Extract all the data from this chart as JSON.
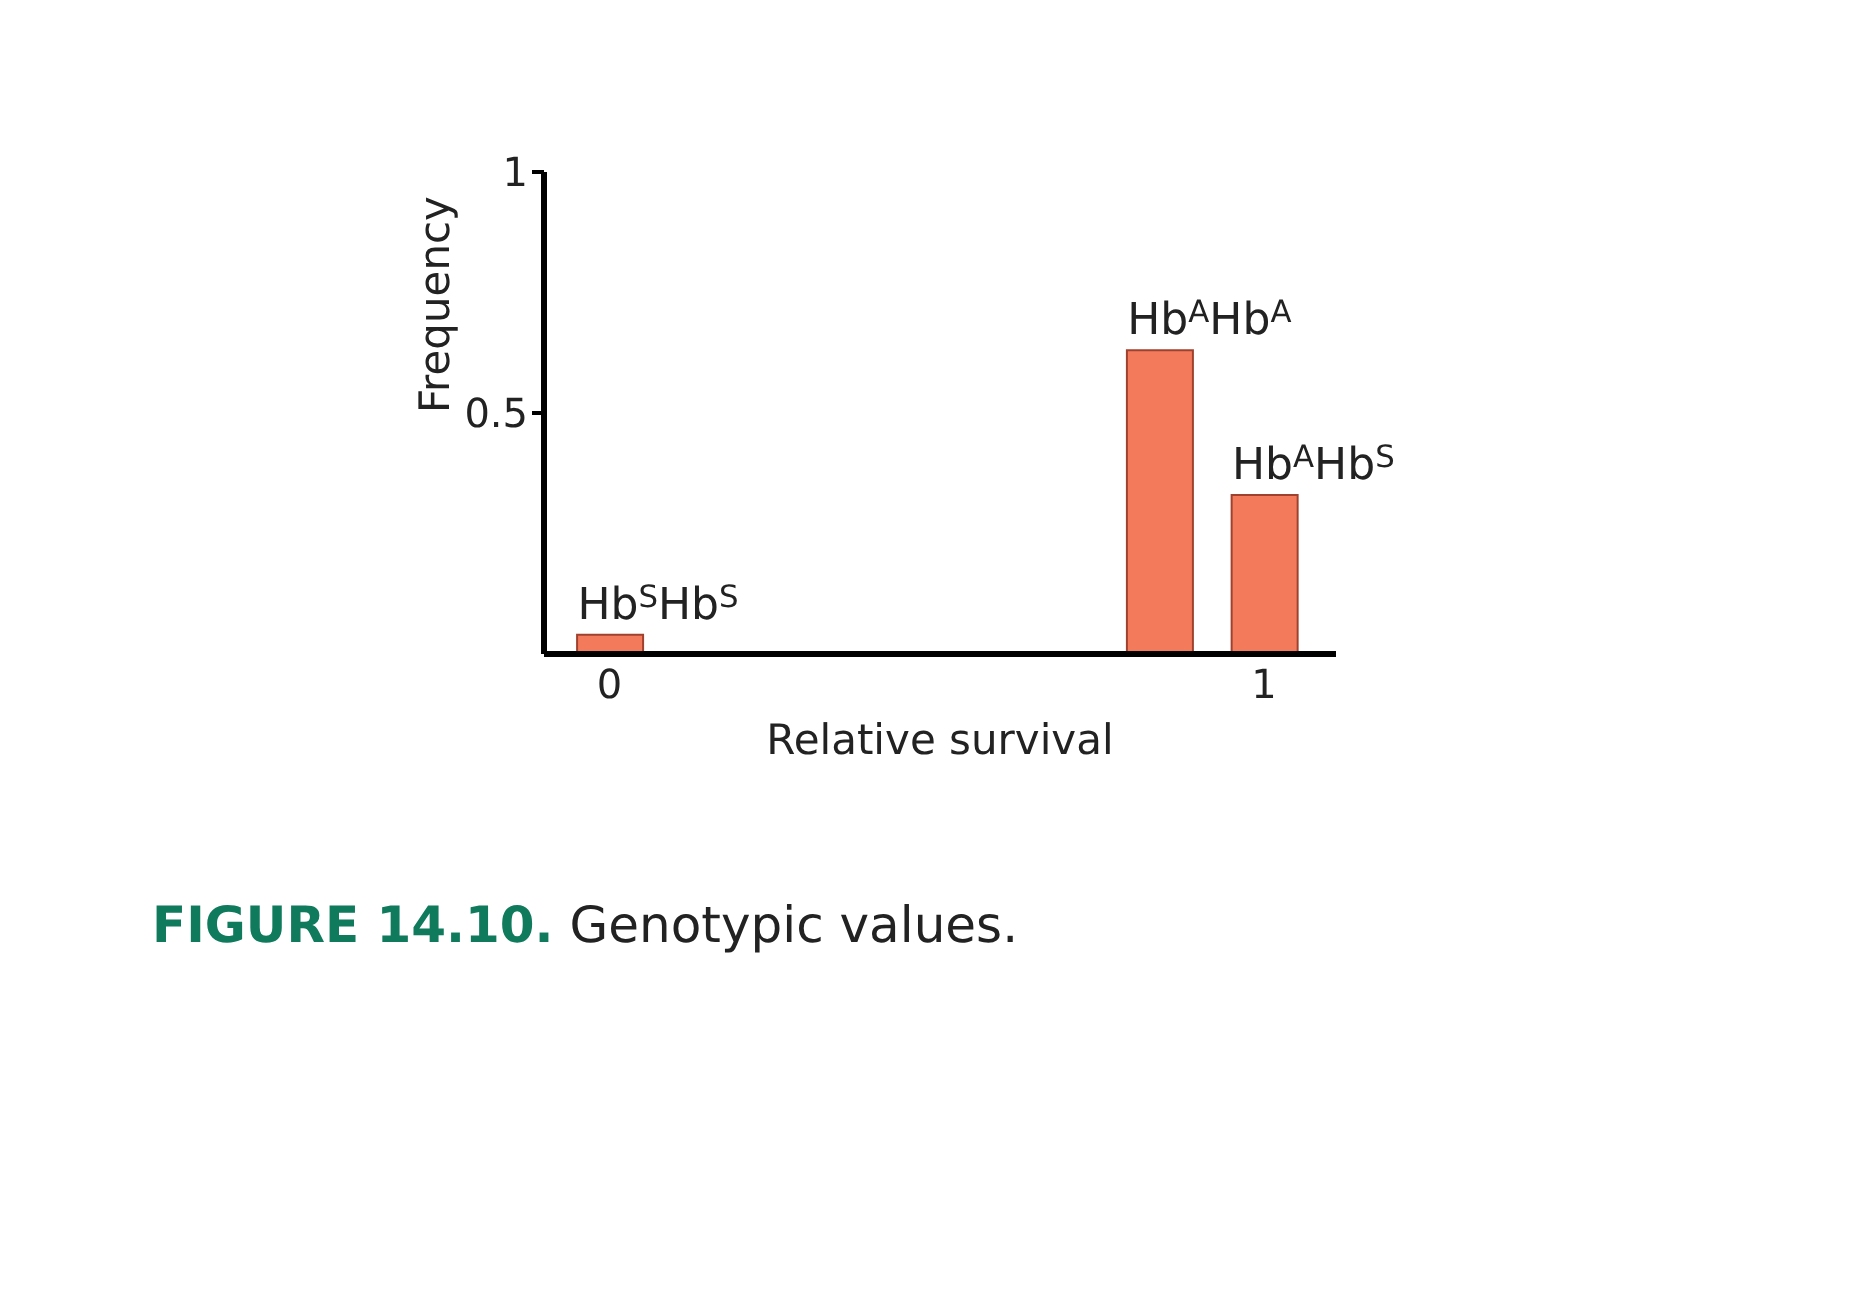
{
  "chart_data": {
    "type": "bar",
    "title": "FIGURE 14.10. Genotypic values.",
    "xlabel": "Relative survival",
    "ylabel": "Frequency",
    "x": [
      0,
      0.84,
      1
    ],
    "values": [
      0.04,
      0.63,
      0.33
    ],
    "color": "#f47a5c",
    "xlim": [
      -0.1,
      1.11
    ],
    "xticks": [
      0,
      1
    ],
    "ylim": [
      0,
      1
    ],
    "yticks": [
      0.5,
      1
    ],
    "annotations": [
      {
        "text": "Hb$^{S}$Hb$^{S}$",
        "x": 0,
        "y": 0.04
      },
      {
        "text": "Hb$^{A}$Hb$^{A}$",
        "x": 0.84,
        "y": 0.63
      },
      {
        "text": "Hb$^{A}$Hb$^{S}$",
        "x": 1,
        "y": 0.33
      }
    ]
  }
}
